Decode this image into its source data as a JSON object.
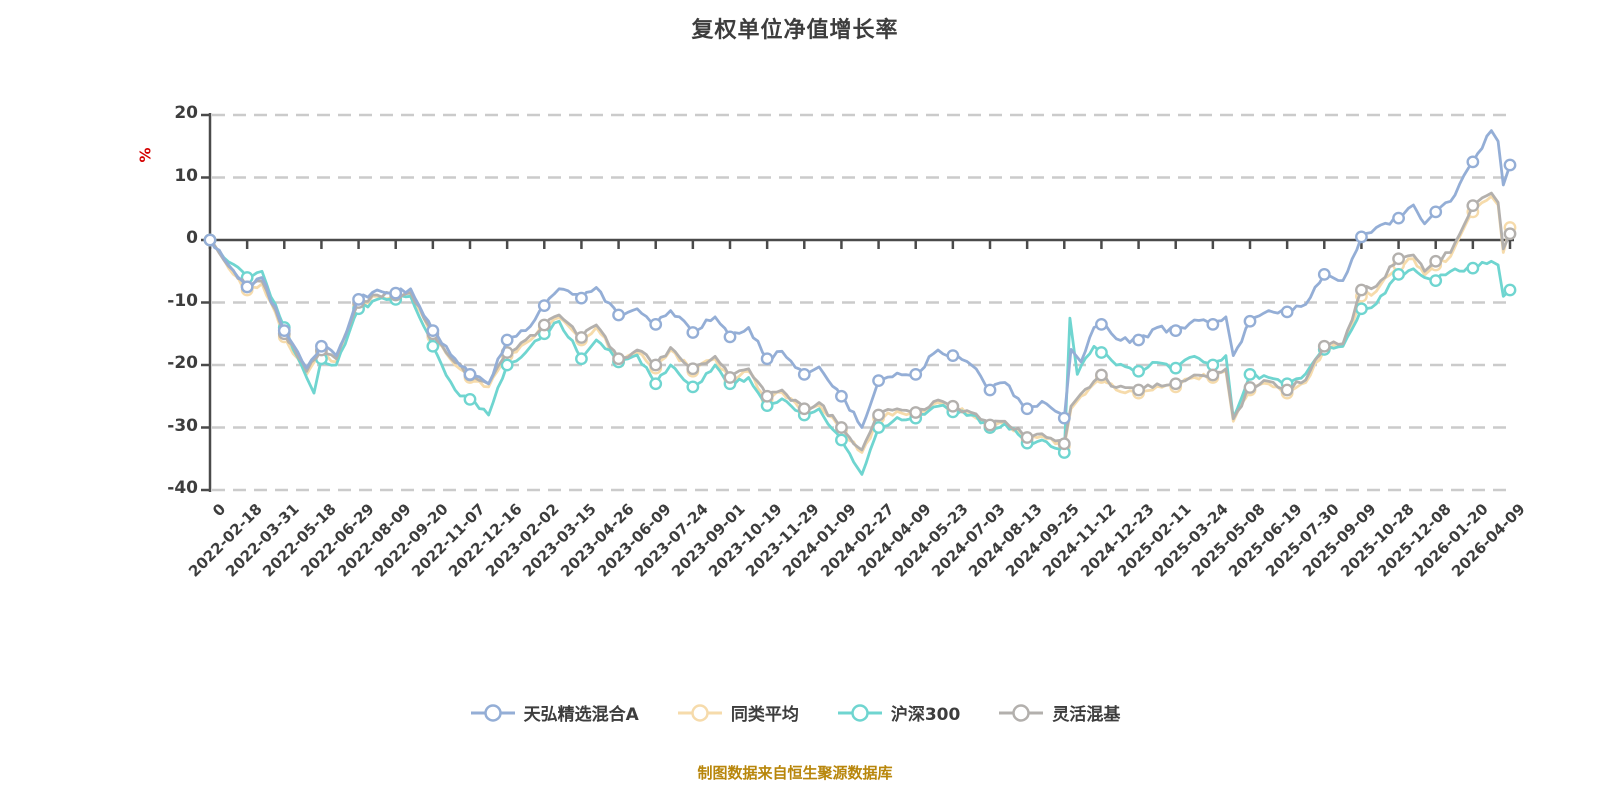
{
  "footer_note": "制图数据来自恒生聚源数据库",
  "colors": {
    "axis": "#4a4a4a",
    "grid": "#cbcbcb",
    "text": "#3d3d3d",
    "unit_label": "#d40000",
    "footer": "#b8860b",
    "background": "#ffffff"
  },
  "chart_data": {
    "type": "line",
    "title": "复权单位净值增长率",
    "ylabel_unit": "%",
    "ylim": [
      -40,
      20
    ],
    "yticks": [
      20,
      10,
      0,
      -10,
      -20,
      -30,
      -40
    ],
    "grid": "horizontal dashed, solid baseline at 0",
    "legend_position": "bottom",
    "x_tick_labels": [
      "0",
      "2022-02-18",
      "2022-03-31",
      "2022-05-18",
      "2022-06-29",
      "2022-08-09",
      "2022-09-20",
      "2022-11-07",
      "2022-12-16",
      "2023-02-02",
      "2023-03-15",
      "2023-04-26",
      "2023-06-09",
      "2023-07-24",
      "2023-09-01",
      "2023-10-19",
      "2023-11-29",
      "2024-01-09",
      "2024-02-27",
      "2024-04-09",
      "2024-05-23",
      "2024-07-03",
      "2024-08-13",
      "2024-09-25",
      "2024-11-12",
      "2024-12-23",
      "2025-02-11",
      "2025-03-24",
      "2025-05-08",
      "2025-06-19",
      "2025-07-30",
      "2025-09-09",
      "2025-10-28",
      "2025-12-08",
      "2026-01-20",
      "2026-04-09"
    ],
    "draw_order": [
      1,
      2,
      3,
      0
    ],
    "series": [
      {
        "name": "天弘精选混合A",
        "color": "#94aed6",
        "anchors": [
          [
            0,
            0
          ],
          [
            0.5,
            -4
          ],
          [
            1,
            -7.5
          ],
          [
            1.4,
            -6
          ],
          [
            2,
            -14.5
          ],
          [
            2.6,
            -20.5
          ],
          [
            3,
            -17
          ],
          [
            3.4,
            -18.5
          ],
          [
            4,
            -9.5
          ],
          [
            4.5,
            -8
          ],
          [
            5,
            -8.5
          ],
          [
            5.4,
            -7.8
          ],
          [
            6,
            -14.5
          ],
          [
            6.6,
            -19
          ],
          [
            7,
            -21.5
          ],
          [
            7.5,
            -23
          ],
          [
            8,
            -16
          ],
          [
            8.5,
            -14.5
          ],
          [
            9,
            -10.5
          ],
          [
            9.4,
            -7.8
          ],
          [
            10,
            -9.3
          ],
          [
            10.4,
            -7.6
          ],
          [
            11,
            -12
          ],
          [
            11.5,
            -11
          ],
          [
            12,
            -13.5
          ],
          [
            12.4,
            -11.3
          ],
          [
            13,
            -14.8
          ],
          [
            13.6,
            -12.3
          ],
          [
            14,
            -15.5
          ],
          [
            14.5,
            -14
          ],
          [
            15,
            -19
          ],
          [
            15.4,
            -17.8
          ],
          [
            16,
            -21.5
          ],
          [
            16.4,
            -20.3
          ],
          [
            17,
            -25
          ],
          [
            17.55,
            -30
          ],
          [
            18,
            -22.5
          ],
          [
            18.5,
            -21.3
          ],
          [
            19,
            -21.5
          ],
          [
            19.6,
            -17.6
          ],
          [
            20,
            -18.5
          ],
          [
            20.5,
            -20
          ],
          [
            21,
            -24
          ],
          [
            21.4,
            -22.8
          ],
          [
            22,
            -27
          ],
          [
            22.4,
            -25.8
          ],
          [
            23,
            -28.5
          ],
          [
            23.18,
            -17.5
          ],
          [
            23.45,
            -19.5
          ],
          [
            23.8,
            -14
          ],
          [
            24,
            -13.5
          ],
          [
            24.4,
            -15.8
          ],
          [
            25,
            -16
          ],
          [
            25.5,
            -14
          ],
          [
            26,
            -14.5
          ],
          [
            26.5,
            -12.8
          ],
          [
            27,
            -13.5
          ],
          [
            27.35,
            -12.3
          ],
          [
            27.55,
            -18.5
          ],
          [
            28,
            -13
          ],
          [
            28.5,
            -11.3
          ],
          [
            29,
            -11.5
          ],
          [
            29.5,
            -10.3
          ],
          [
            30,
            -5.5
          ],
          [
            30.5,
            -6.5
          ],
          [
            31,
            0.5
          ],
          [
            31.4,
            2
          ],
          [
            32,
            3.5
          ],
          [
            32.4,
            5.6
          ],
          [
            32.7,
            2.6
          ],
          [
            33,
            4.5
          ],
          [
            33.4,
            6.2
          ],
          [
            34,
            12.5
          ],
          [
            34.5,
            17.5
          ],
          [
            34.68,
            15.8
          ],
          [
            34.82,
            8.8
          ],
          [
            35,
            12
          ]
        ]
      },
      {
        "name": "同类平均",
        "color": "#f6dbab",
        "anchors": [
          [
            0,
            0
          ],
          [
            0.5,
            -4.5
          ],
          [
            1,
            -8
          ],
          [
            1.4,
            -7
          ],
          [
            2,
            -15.5
          ],
          [
            2.6,
            -21.5
          ],
          [
            3,
            -18
          ],
          [
            3.4,
            -19.5
          ],
          [
            4,
            -10.5
          ],
          [
            4.5,
            -9
          ],
          [
            5,
            -9
          ],
          [
            5.4,
            -8.6
          ],
          [
            6,
            -15.5
          ],
          [
            6.6,
            -20
          ],
          [
            7,
            -22
          ],
          [
            7.5,
            -23.5
          ],
          [
            8,
            -18.5
          ],
          [
            8.5,
            -16.5
          ],
          [
            9,
            -14
          ],
          [
            9.4,
            -12.4
          ],
          [
            10,
            -16
          ],
          [
            10.4,
            -14
          ],
          [
            11,
            -19.5
          ],
          [
            11.5,
            -18
          ],
          [
            12,
            -20.5
          ],
          [
            12.4,
            -17.6
          ],
          [
            13,
            -21
          ],
          [
            13.6,
            -19
          ],
          [
            14,
            -22.5
          ],
          [
            14.5,
            -21
          ],
          [
            15,
            -25.5
          ],
          [
            15.4,
            -24.4
          ],
          [
            16,
            -27.5
          ],
          [
            16.4,
            -26.4
          ],
          [
            17,
            -30.5
          ],
          [
            17.55,
            -34
          ],
          [
            18,
            -28.5
          ],
          [
            18.5,
            -27.4
          ],
          [
            19,
            -28
          ],
          [
            19.6,
            -26
          ],
          [
            20,
            -27
          ],
          [
            20.5,
            -28
          ],
          [
            21,
            -30
          ],
          [
            21.4,
            -29.4
          ],
          [
            22,
            -32
          ],
          [
            22.4,
            -31.4
          ],
          [
            23,
            -33
          ],
          [
            23.18,
            -27
          ],
          [
            23.45,
            -25
          ],
          [
            23.8,
            -23
          ],
          [
            24,
            -22
          ],
          [
            24.4,
            -24
          ],
          [
            25,
            -24.5
          ],
          [
            25.5,
            -23.4
          ],
          [
            26,
            -23.5
          ],
          [
            26.5,
            -22
          ],
          [
            27,
            -22
          ],
          [
            27.35,
            -21
          ],
          [
            27.55,
            -29
          ],
          [
            28,
            -24
          ],
          [
            28.5,
            -23
          ],
          [
            29,
            -24.5
          ],
          [
            29.5,
            -22.8
          ],
          [
            30,
            -17.5
          ],
          [
            30.5,
            -17
          ],
          [
            31,
            -9
          ],
          [
            31.4,
            -8.2
          ],
          [
            32,
            -4
          ],
          [
            32.4,
            -3
          ],
          [
            32.7,
            -5.6
          ],
          [
            33,
            -4
          ],
          [
            33.4,
            -2.6
          ],
          [
            34,
            4.5
          ],
          [
            34.5,
            7
          ],
          [
            34.68,
            5.6
          ],
          [
            34.82,
            -2
          ],
          [
            35,
            2
          ]
        ]
      },
      {
        "name": "沪深300",
        "color": "#6fd5d0",
        "anchors": [
          [
            0,
            0
          ],
          [
            0.5,
            -3.5
          ],
          [
            1,
            -6
          ],
          [
            1.4,
            -5
          ],
          [
            2,
            -14
          ],
          [
            2.6,
            -22
          ],
          [
            2.8,
            -24.5
          ],
          [
            3,
            -19
          ],
          [
            3.4,
            -20
          ],
          [
            4,
            -11
          ],
          [
            4.5,
            -9.5
          ],
          [
            5,
            -9.5
          ],
          [
            5.4,
            -9
          ],
          [
            6,
            -17
          ],
          [
            6.6,
            -24
          ],
          [
            7,
            -25.5
          ],
          [
            7.5,
            -28
          ],
          [
            8,
            -20
          ],
          [
            8.5,
            -18
          ],
          [
            9,
            -15
          ],
          [
            9.4,
            -13
          ],
          [
            10,
            -19
          ],
          [
            10.4,
            -16
          ],
          [
            11,
            -19.5
          ],
          [
            11.5,
            -18.4
          ],
          [
            12,
            -23
          ],
          [
            12.4,
            -20
          ],
          [
            13,
            -23.5
          ],
          [
            13.6,
            -20
          ],
          [
            14,
            -23
          ],
          [
            14.5,
            -22
          ],
          [
            15,
            -26.5
          ],
          [
            15.4,
            -25.4
          ],
          [
            16,
            -28
          ],
          [
            16.4,
            -27
          ],
          [
            17,
            -32
          ],
          [
            17.55,
            -37.5
          ],
          [
            18,
            -30
          ],
          [
            18.5,
            -28.4
          ],
          [
            19,
            -28.5
          ],
          [
            19.6,
            -26.6
          ],
          [
            20,
            -27.5
          ],
          [
            20.5,
            -28
          ],
          [
            21,
            -30
          ],
          [
            21.4,
            -29.4
          ],
          [
            22,
            -32.5
          ],
          [
            22.4,
            -32
          ],
          [
            23,
            -34
          ],
          [
            23.15,
            -12.5
          ],
          [
            23.35,
            -21.5
          ],
          [
            23.8,
            -17
          ],
          [
            24,
            -18
          ],
          [
            24.4,
            -20
          ],
          [
            25,
            -21
          ],
          [
            25.5,
            -19.6
          ],
          [
            26,
            -20.5
          ],
          [
            26.5,
            -18.6
          ],
          [
            27,
            -20
          ],
          [
            27.35,
            -18.5
          ],
          [
            27.55,
            -28.5
          ],
          [
            28,
            -21.5
          ],
          [
            28.5,
            -22
          ],
          [
            29,
            -23
          ],
          [
            29.5,
            -21.4
          ],
          [
            30,
            -17.5
          ],
          [
            30.5,
            -17
          ],
          [
            31,
            -11
          ],
          [
            31.4,
            -10.2
          ],
          [
            32,
            -5.5
          ],
          [
            32.4,
            -4.6
          ],
          [
            32.7,
            -6
          ],
          [
            33,
            -6.5
          ],
          [
            33.4,
            -5
          ],
          [
            34,
            -4.5
          ],
          [
            34.5,
            -3.4
          ],
          [
            34.68,
            -4
          ],
          [
            34.82,
            -9
          ],
          [
            35,
            -8
          ]
        ]
      },
      {
        "name": "灵活混基",
        "color": "#b3b0ad",
        "anchors": [
          [
            0,
            0
          ],
          [
            0.5,
            -4.2
          ],
          [
            1,
            -7.5
          ],
          [
            1.4,
            -6.6
          ],
          [
            2,
            -15
          ],
          [
            2.6,
            -21
          ],
          [
            3,
            -17.6
          ],
          [
            3.4,
            -19
          ],
          [
            4,
            -10
          ],
          [
            4.5,
            -8.8
          ],
          [
            5,
            -8.8
          ],
          [
            5.4,
            -8.4
          ],
          [
            6,
            -15
          ],
          [
            6.6,
            -19.6
          ],
          [
            7,
            -21.6
          ],
          [
            7.5,
            -23
          ],
          [
            8,
            -18
          ],
          [
            8.5,
            -16
          ],
          [
            9,
            -13.6
          ],
          [
            9.4,
            -12
          ],
          [
            10,
            -15.6
          ],
          [
            10.4,
            -13.6
          ],
          [
            11,
            -19
          ],
          [
            11.5,
            -17.6
          ],
          [
            12,
            -20
          ],
          [
            12.4,
            -17.2
          ],
          [
            13,
            -20.6
          ],
          [
            13.6,
            -18.6
          ],
          [
            14,
            -22
          ],
          [
            14.5,
            -20.6
          ],
          [
            15,
            -25
          ],
          [
            15.4,
            -24
          ],
          [
            16,
            -27
          ],
          [
            16.4,
            -26
          ],
          [
            17,
            -30
          ],
          [
            17.55,
            -33.6
          ],
          [
            18,
            -28
          ],
          [
            18.5,
            -27
          ],
          [
            19,
            -27.6
          ],
          [
            19.6,
            -25.6
          ],
          [
            20,
            -26.6
          ],
          [
            20.5,
            -27.6
          ],
          [
            21,
            -29.6
          ],
          [
            21.4,
            -29
          ],
          [
            22,
            -31.6
          ],
          [
            22.4,
            -31
          ],
          [
            23,
            -32.6
          ],
          [
            23.18,
            -26.6
          ],
          [
            23.45,
            -24.6
          ],
          [
            23.8,
            -22.6
          ],
          [
            24,
            -21.6
          ],
          [
            24.4,
            -23.6
          ],
          [
            25,
            -24
          ],
          [
            25.5,
            -23
          ],
          [
            26,
            -23
          ],
          [
            26.5,
            -21.6
          ],
          [
            27,
            -21.6
          ],
          [
            27.35,
            -20.6
          ],
          [
            27.55,
            -28.6
          ],
          [
            28,
            -23.6
          ],
          [
            28.5,
            -22.6
          ],
          [
            29,
            -24
          ],
          [
            29.5,
            -22.4
          ],
          [
            30,
            -17
          ],
          [
            30.5,
            -16.6
          ],
          [
            31,
            -8
          ],
          [
            31.4,
            -7.4
          ],
          [
            32,
            -3
          ],
          [
            32.4,
            -2.4
          ],
          [
            32.7,
            -5
          ],
          [
            33,
            -3.4
          ],
          [
            33.4,
            -2
          ],
          [
            34,
            5.5
          ],
          [
            34.5,
            7.5
          ],
          [
            34.68,
            6
          ],
          [
            34.82,
            -1.4
          ],
          [
            35,
            1
          ]
        ]
      }
    ]
  }
}
